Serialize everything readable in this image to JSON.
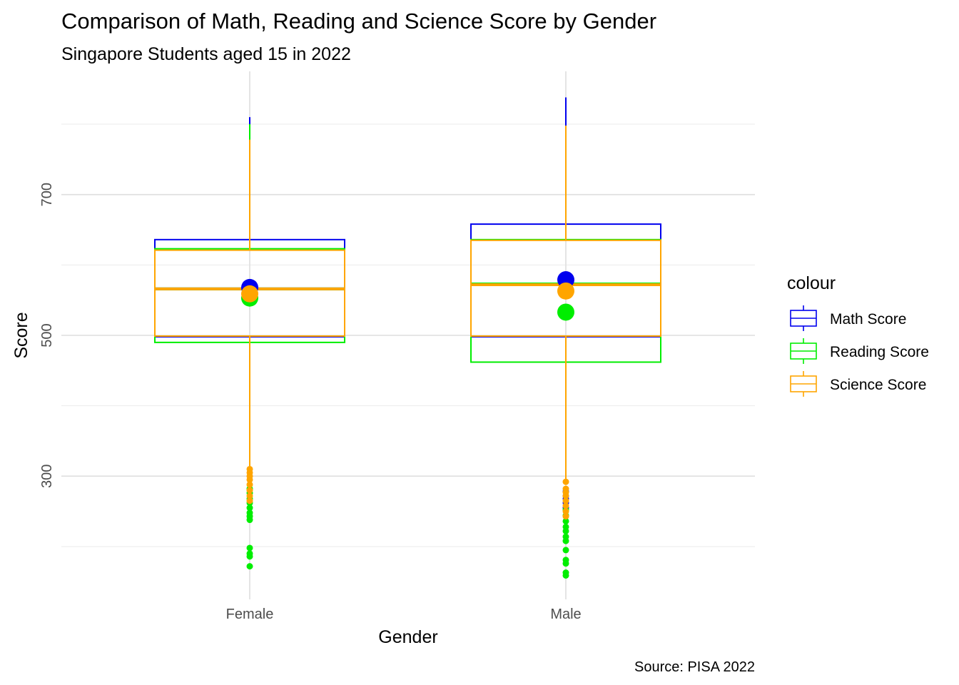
{
  "chart_data": {
    "type": "boxplot",
    "title": "Comparison of Math, Reading and Science Score by Gender",
    "subtitle": "Singapore Students aged 15 in 2022",
    "xlabel": "Gender",
    "ylabel": "Score",
    "caption": "Source: PISA 2022",
    "categories": [
      "Female",
      "Male"
    ],
    "ylim": [
      125,
      875
    ],
    "yticks": [
      300,
      500,
      700
    ],
    "y_minor": [
      200,
      400,
      600,
      800
    ],
    "grid": true,
    "legend": {
      "title": "colour",
      "position": "right"
    },
    "series": [
      {
        "name": "Math Score",
        "color": "#0000ee",
        "boxes": [
          {
            "category": "Female",
            "q1": 498,
            "median": 566,
            "q3": 636,
            "whisker_low": 312,
            "whisker_high": 810,
            "mean": 568,
            "outliers": []
          },
          {
            "category": "Male",
            "q1": 498,
            "median": 573,
            "q3": 658,
            "whisker_low": 295,
            "whisker_high": 838,
            "mean": 579,
            "outliers": [
              255,
              262,
              268,
              272,
              278
            ]
          }
        ]
      },
      {
        "name": "Reading Score",
        "color": "#00ee00",
        "boxes": [
          {
            "category": "Female",
            "q1": 490,
            "median": 566,
            "q3": 623,
            "whisker_low": 312,
            "whisker_high": 800,
            "mean": 553,
            "outliers": [
              282,
              276,
              268,
              262,
              255,
              248,
              243,
              238,
              198,
              190,
              186,
              172
            ]
          }
        ]
      },
      {
        "name": "Reading Score",
        "color": "#00ee00",
        "boxes": [
          {
            "category": "Male",
            "q1": 462,
            "median": 573,
            "q3": 636,
            "whisker_low": 295,
            "whisker_high": 797,
            "mean": 533,
            "outliers": [
              252,
              244,
              236,
              228,
              222,
              214,
              208,
              195,
              181,
              176,
              163,
              159
            ]
          }
        ]
      },
      {
        "name": "Science Score",
        "color": "#ffa500",
        "boxes": [
          {
            "category": "Female",
            "q1": 499,
            "median": 566,
            "q3": 621,
            "whisker_low": 312,
            "whisker_high": 778,
            "mean": 559,
            "outliers": [
              310,
              305,
              300,
              295,
              288,
              280,
              272,
              265
            ]
          },
          {
            "category": "Male",
            "q1": 499,
            "median": 572,
            "q3": 635,
            "whisker_low": 295,
            "whisker_high": 798,
            "mean": 563,
            "outliers": [
              292,
              282,
              277,
              272,
              265,
              258,
              250,
              243
            ]
          }
        ]
      }
    ]
  }
}
